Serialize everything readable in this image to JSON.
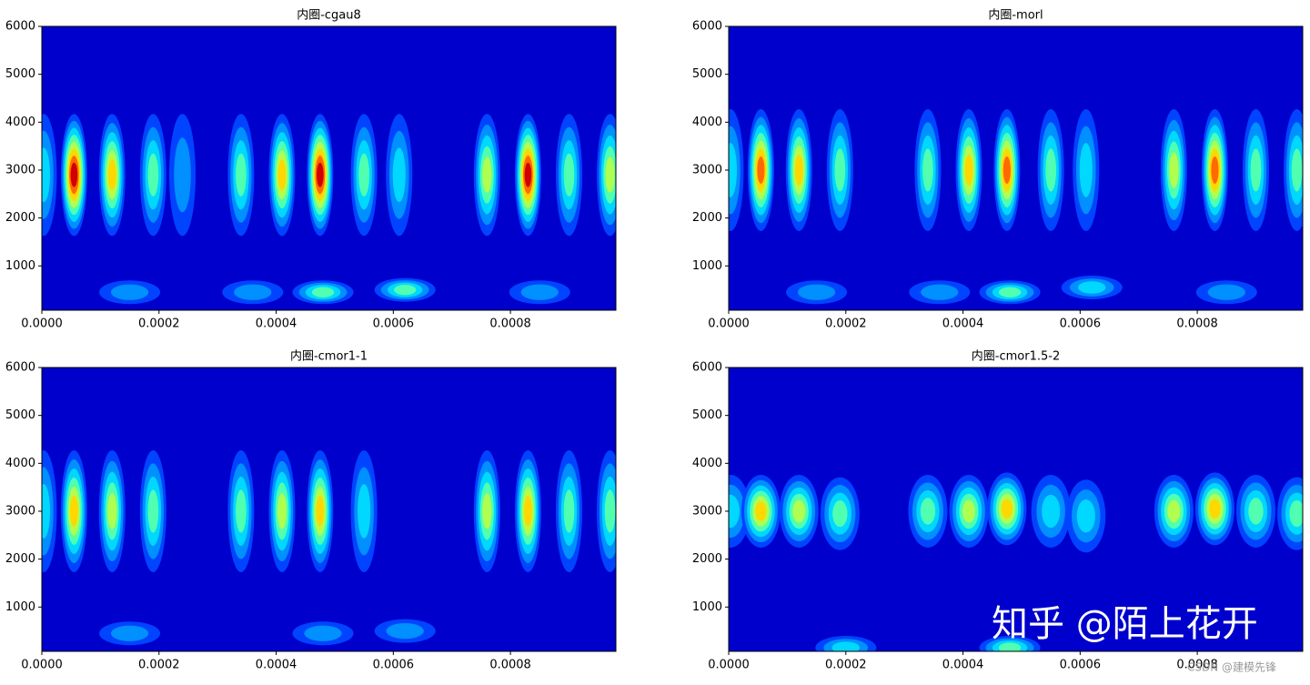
{
  "chart_data": [
    {
      "type": "contour",
      "title": "内圈-cgau8",
      "x": [
        3e-06,
        5.5e-05,
        0.00012,
        0.00019,
        0.00024,
        0.00034,
        0.00041,
        0.000475,
        0.00055,
        0.00061,
        0.00076,
        0.00083,
        0.0009,
        0.00097,
        0.00015,
        0.00036,
        0.00048,
        0.00062,
        0.00085
      ],
      "y": [
        2900,
        2900,
        2900,
        2900,
        2900,
        2900,
        2900,
        2900,
        2900,
        2900,
        2900,
        2900,
        2900,
        2900,
        450,
        450,
        450,
        500,
        450
      ],
      "values": [
        0.4,
        1.0,
        0.75,
        0.5,
        0.3,
        0.5,
        0.75,
        1.0,
        0.5,
        0.4,
        0.65,
        1.0,
        0.5,
        0.65,
        0.3,
        0.3,
        0.5,
        0.45,
        0.3
      ],
      "xlim": [
        0,
        0.00098
      ],
      "ylim": [
        75,
        6000
      ],
      "xticks": [
        {
          "value": 0,
          "label": "0.0000"
        },
        {
          "value": 0.0002,
          "label": "0.0002"
        },
        {
          "value": 0.0004,
          "label": "0.0004"
        },
        {
          "value": 0.0006,
          "label": "0.0006"
        },
        {
          "value": 0.0008,
          "label": "0.0008"
        }
      ],
      "yticks": [
        1000,
        2000,
        3000,
        4000,
        5000,
        6000
      ]
    },
    {
      "type": "contour",
      "title": "内圈-morl",
      "x": [
        3e-06,
        5.5e-05,
        0.00012,
        0.00019,
        0.00034,
        0.00041,
        0.000475,
        0.00055,
        0.00061,
        0.00076,
        0.00083,
        0.0009,
        0.00097,
        0.00015,
        0.00036,
        0.00048,
        0.00062,
        0.00085
      ],
      "y": [
        3000,
        3000,
        3000,
        3000,
        3000,
        3000,
        3000,
        3000,
        3000,
        3000,
        3000,
        3000,
        3000,
        450,
        450,
        450,
        550,
        450
      ],
      "values": [
        0.4,
        0.9,
        0.7,
        0.55,
        0.5,
        0.7,
        0.9,
        0.5,
        0.4,
        0.6,
        0.9,
        0.5,
        0.55,
        0.3,
        0.3,
        0.5,
        0.4,
        0.3
      ],
      "xlim": [
        0,
        0.00098
      ],
      "ylim": [
        75,
        6000
      ],
      "xticks": [
        {
          "value": 0,
          "label": "0.0000"
        },
        {
          "value": 0.0002,
          "label": "0.0002"
        },
        {
          "value": 0.0004,
          "label": "0.0004"
        },
        {
          "value": 0.0006,
          "label": "0.0006"
        },
        {
          "value": 0.0008,
          "label": "0.0008"
        }
      ],
      "yticks": [
        1000,
        2000,
        3000,
        4000,
        5000,
        6000
      ]
    },
    {
      "type": "contour",
      "title": "内圈-cmor1-1",
      "x": [
        3e-06,
        5.5e-05,
        0.00012,
        0.00019,
        0.00034,
        0.00041,
        0.000475,
        0.00055,
        0.00076,
        0.00083,
        0.0009,
        0.00097,
        0.00015,
        0.00048,
        0.00062
      ],
      "y": [
        3000,
        3000,
        3000,
        3000,
        3000,
        3000,
        3000,
        3000,
        3000,
        3000,
        3000,
        3000,
        450,
        450,
        500
      ],
      "values": [
        0.35,
        0.8,
        0.65,
        0.45,
        0.45,
        0.65,
        0.8,
        0.35,
        0.6,
        0.8,
        0.45,
        0.55,
        0.25,
        0.3,
        0.3
      ],
      "xlim": [
        0,
        0.00098
      ],
      "ylim": [
        75,
        6000
      ],
      "xticks": [
        {
          "value": 0,
          "label": "0.0000"
        },
        {
          "value": 0.0002,
          "label": "0.0002"
        },
        {
          "value": 0.0004,
          "label": "0.0004"
        },
        {
          "value": 0.0006,
          "label": "0.0006"
        },
        {
          "value": 0.0008,
          "label": "0.0008"
        }
      ],
      "yticks": [
        1000,
        2000,
        3000,
        4000,
        5000,
        6000
      ]
    },
    {
      "type": "contour",
      "title": "内圈-cmor1.5-2",
      "x": [
        3e-06,
        5.5e-05,
        0.00012,
        0.00019,
        0.00034,
        0.00041,
        0.000475,
        0.00055,
        0.00061,
        0.00076,
        0.00083,
        0.0009,
        0.00097,
        0.0002,
        0.00048
      ],
      "y": [
        3000,
        3000,
        3000,
        2950,
        3000,
        3000,
        3050,
        3000,
        2900,
        3000,
        3050,
        3000,
        2950,
        150,
        150
      ],
      "values": [
        0.35,
        0.75,
        0.6,
        0.45,
        0.5,
        0.6,
        0.75,
        0.4,
        0.35,
        0.6,
        0.75,
        0.45,
        0.5,
        0.35,
        0.5
      ],
      "xlim": [
        0,
        0.00098
      ],
      "ylim": [
        75,
        6000
      ],
      "xticks": [
        {
          "value": 0,
          "label": "0.0000"
        },
        {
          "value": 0.0002,
          "label": "0.0002"
        },
        {
          "value": 0.0004,
          "label": "0.0004"
        },
        {
          "value": 0.0006,
          "label": "0.0006"
        },
        {
          "value": 0.0008,
          "label": "0.0008"
        }
      ],
      "yticks": [
        1000,
        2000,
        3000,
        4000,
        5000,
        6000
      ]
    }
  ],
  "colors": [
    "#0000cd",
    "#0044ff",
    "#0090ff",
    "#00d8ff",
    "#50ffb0",
    "#b0ff50",
    "#ffd800",
    "#ff6a00",
    "#d00000"
  ],
  "watermarks": [
    "知乎 @陌上花开",
    "CSDN @建模先锋"
  ]
}
